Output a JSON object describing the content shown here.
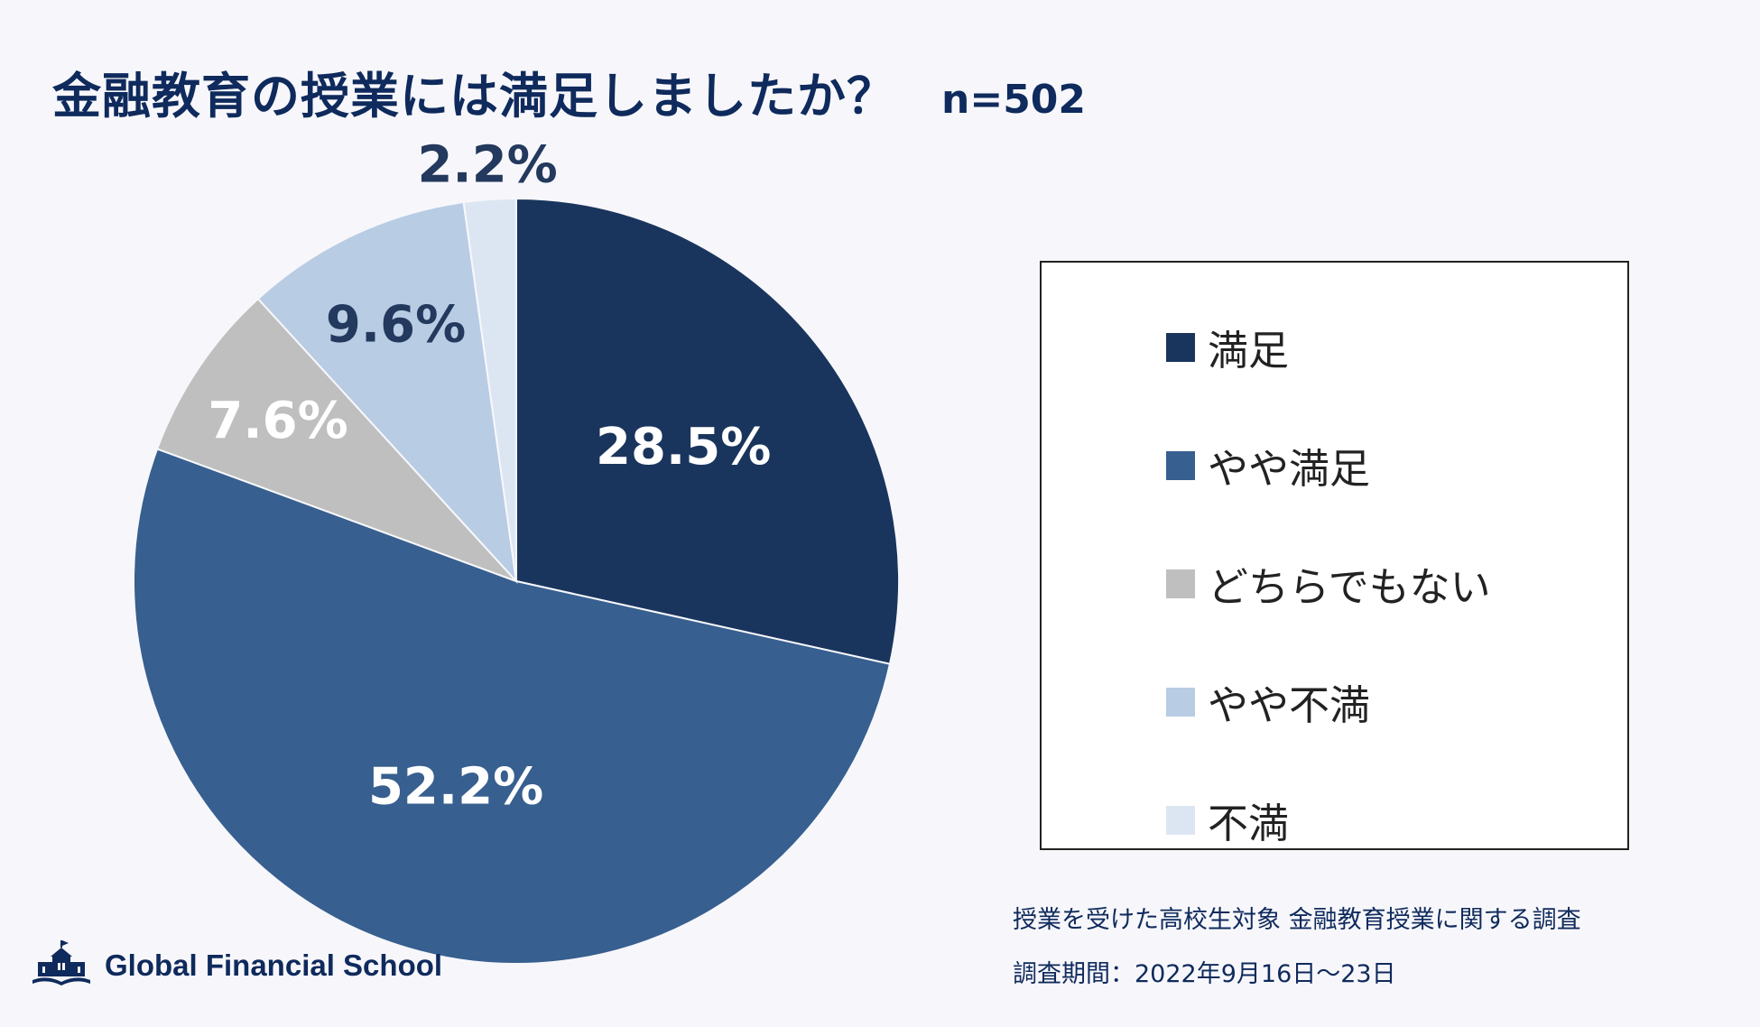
{
  "title": "金融教育の授業には満足しましたか？",
  "sample_size": "n=502",
  "chart_data": {
    "type": "pie",
    "title": "金融教育の授業には満足しましたか？",
    "categories": [
      "満足",
      "やや満足",
      "どちらでもない",
      "やや不満",
      "不満"
    ],
    "values": [
      28.5,
      52.2,
      7.6,
      9.6,
      2.2
    ],
    "value_labels": [
      "28.5%",
      "52.2%",
      "7.6%",
      "9.6%",
      "2.2%"
    ],
    "colors": [
      "#1a355d",
      "#375f8f",
      "#bfbfbf",
      "#b8cce4",
      "#dce6f2"
    ],
    "label_colors": [
      "#ffffff",
      "#ffffff",
      "#ffffff",
      "#23395d",
      "#23395d"
    ],
    "start": "12 o'clock",
    "direction": "clockwise",
    "legend_position": "right"
  },
  "legend": {
    "items": [
      {
        "label": "満足",
        "color": "#1a355d"
      },
      {
        "label": "やや満足",
        "color": "#375f8f"
      },
      {
        "label": "どちらでもない",
        "color": "#bfbfbf"
      },
      {
        "label": "やや不満",
        "color": "#b8cce4"
      },
      {
        "label": "不満",
        "color": "#dce6f2"
      }
    ]
  },
  "footnotes": {
    "line1": "授業を受けた高校生対象 金融教育授業に関する調査",
    "line2": "調査期間：2022年9月16日～23日"
  },
  "logo": {
    "text": "Global Financial School",
    "icon": "school-building-icon"
  }
}
